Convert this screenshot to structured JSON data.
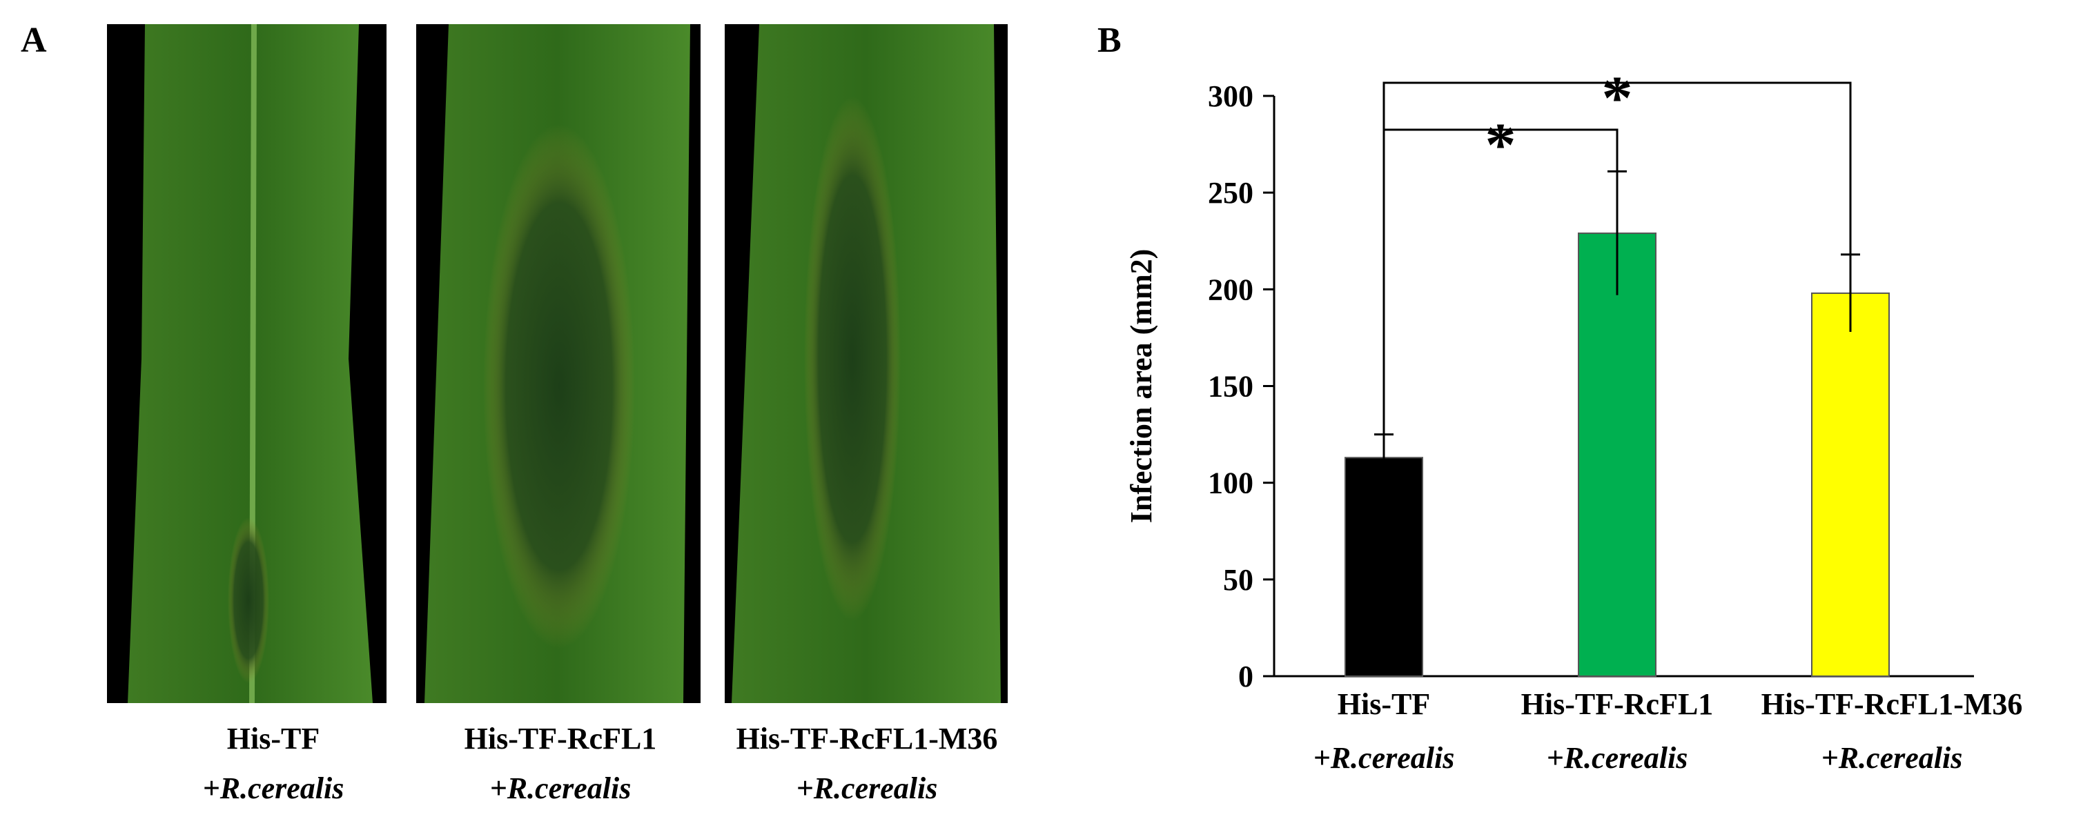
{
  "panel_a": {
    "label": "A",
    "captions": [
      [
        "His-TF",
        "+R.cerealis"
      ],
      [
        "His-TF-RcFL1",
        "+R.cerealis"
      ],
      [
        "His-TF-RcFL1-M36",
        "+R.cerealis"
      ]
    ]
  },
  "chart_data": {
    "type": "bar",
    "label": "B",
    "y_label": "Infection area (mm2)",
    "categories": [
      [
        "His-TF",
        "+R.cerealis"
      ],
      [
        "His-TF-RcFL1",
        "+R.cerealis"
      ],
      [
        "His-TF-RcFL1-M36",
        "+R.cerealis"
      ]
    ],
    "values": [
      113,
      229,
      198
    ],
    "errors": [
      12,
      32,
      20
    ],
    "colors": [
      "#000000",
      "#00b050",
      "#ffff00"
    ],
    "ylim": [
      0,
      300
    ],
    "yticks": [
      0,
      50,
      100,
      150,
      200,
      250,
      300
    ],
    "annotations": [
      "*",
      "*"
    ]
  }
}
